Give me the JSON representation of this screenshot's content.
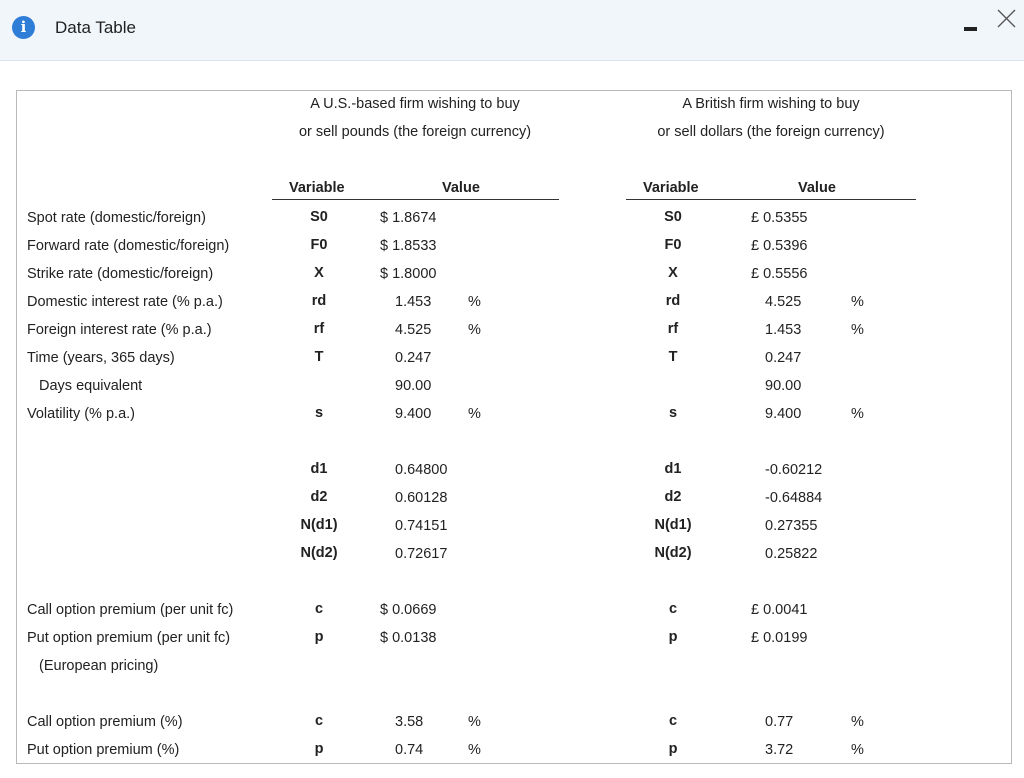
{
  "window": {
    "title": "Data Table",
    "controls": {
      "minimize": "minimize-icon",
      "close": "close-icon"
    }
  },
  "headers": {
    "us_line1": "A U.S.-based firm wishing to buy",
    "us_line2": "or sell pounds (the foreign currency)",
    "uk_line1": "A British firm wishing to buy",
    "uk_line2": "or sell dollars (the foreign currency)"
  },
  "column_headers": {
    "variable": "Variable",
    "value": "Value"
  },
  "labels": [
    "Spot rate (domestic/foreign)",
    "Forward rate (domestic/foreign)",
    "Strike rate (domestic/foreign)",
    "Domestic interest rate (% p.a.)",
    "Foreign interest rate (% p.a.)",
    "Time (years, 365 days)",
    "Days equivalent",
    "Volatility (% p.a.)",
    "Call option premium (per unit fc)",
    "Put option premium (per unit fc)",
    "(European pricing)",
    "Call option premium (%)",
    "Put option premium (%)"
  ],
  "us": {
    "vars": [
      "S0",
      "F0",
      "X",
      "rd",
      "rf",
      "T",
      "",
      "s",
      "d1",
      "d2",
      "N(d1)",
      "N(d2)",
      "c",
      "p",
      "c",
      "p"
    ],
    "vals": [
      "$ 1.8674",
      "$ 1.8533",
      "$ 1.8000",
      "1.453",
      "4.525",
      "0.247",
      "90.00",
      "9.400",
      "0.64800",
      "0.60128",
      "0.74151",
      "0.72617",
      "$ 0.0669",
      "$ 0.0138",
      "3.58",
      "0.74"
    ],
    "units": [
      "",
      "",
      "",
      "%",
      "%",
      "",
      "",
      "%",
      "",
      "",
      "",
      "",
      "",
      "",
      "%",
      "%"
    ]
  },
  "uk": {
    "vars": [
      "S0",
      "F0",
      "X",
      "rd",
      "rf",
      "T",
      "",
      "s",
      "d1",
      "d2",
      "N(d1)",
      "N(d2)",
      "c",
      "p",
      "c",
      "p"
    ],
    "vals": [
      "£ 0.5355",
      "£ 0.5396",
      "£ 0.5556",
      "4.525",
      "1.453",
      "0.247",
      "90.00",
      "9.400",
      "-0.60212",
      "-0.64884",
      "0.27355",
      "0.25822",
      "£ 0.0041",
      "£ 0.0199",
      "0.77",
      "3.72"
    ],
    "units": [
      "",
      "",
      "",
      "%",
      "%",
      "",
      "",
      "%",
      "",
      "",
      "",
      "",
      "",
      "",
      "%",
      "%"
    ]
  }
}
